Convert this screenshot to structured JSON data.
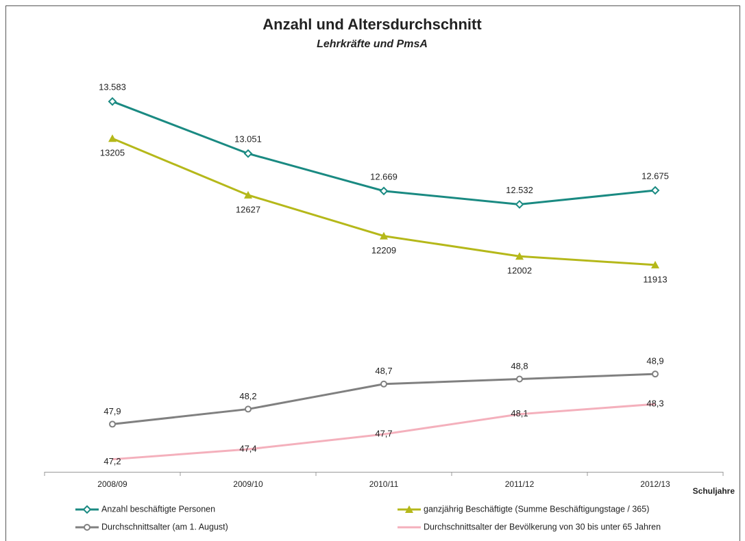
{
  "chart_data": {
    "type": "line",
    "title": "Anzahl und Altersdurchschnitt",
    "subtitle": "Lehrkräfte und PmsA",
    "x_label": "Schuljahre",
    "categories": [
      "2008/09",
      "2009/10",
      "2010/11",
      "2011/12",
      "2012/13"
    ],
    "ylim": [
      46.95,
      55.4
    ],
    "y2lim": [
      9800,
      14130
    ],
    "series": [
      {
        "name": "Anzahl beschäftigte Personen",
        "color": "#1a8a82",
        "marker": "diamond",
        "axis": "y2",
        "values": [
          13583,
          13051,
          12669,
          12532,
          12675
        ],
        "value_labels": [
          "13.583",
          "13.051",
          "12.669",
          "12.532",
          "12.675"
        ]
      },
      {
        "name": "ganzjährig Beschäftigte (Summe Beschäftigungstage / 365)",
        "color": "#b5b81a",
        "marker": "triangle",
        "axis": "y2",
        "values": [
          13205,
          12627,
          12209,
          12002,
          11913
        ]
      },
      {
        "name": "Durchschnittsalter (am 1. August)",
        "color": "#808080",
        "marker": "circle",
        "values": [
          47.9,
          48.2,
          48.7,
          48.8,
          48.9
        ],
        "value_labels": [
          "47,9",
          "48,2",
          "48,7",
          "48,8",
          "48,9"
        ]
      },
      {
        "name": "Durchschnittsalter der Bevölkerung von 30 bis unter 65 Jahren",
        "color": "#f4b0bc",
        "marker": "none",
        "values": [
          47.2,
          47.4,
          47.7,
          48.1,
          48.3
        ],
        "value_labels": [
          "47,2",
          "47,4",
          "47,7",
          "48,1",
          "48,3"
        ]
      }
    ]
  }
}
